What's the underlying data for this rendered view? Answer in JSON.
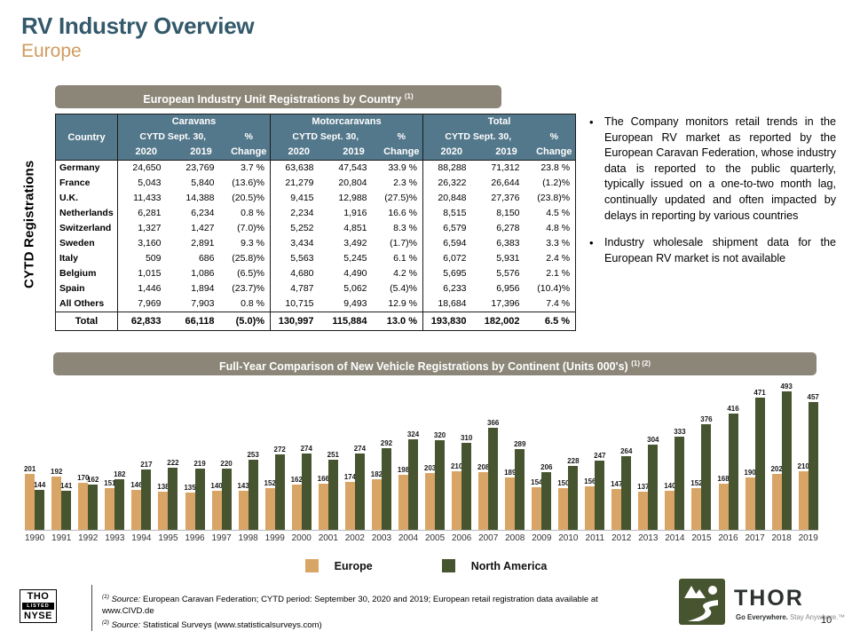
{
  "slide": {
    "title": "RV Industry Overview",
    "subtitle": "Europe",
    "page_number": "10"
  },
  "table_section": {
    "header": "European Industry Unit Registrations by Country",
    "header_superscript": "(1)",
    "vertical_label": "CYTD Registrations",
    "table": {
      "country_header": "Country",
      "groups": [
        {
          "name": "Caravans"
        },
        {
          "name": "Motorcaravans"
        },
        {
          "name": "Total"
        }
      ],
      "period_label": "CYTD Sept. 30,",
      "pct_label": "%",
      "year_cols": [
        "2020",
        "2019"
      ],
      "change_label": "Change",
      "rows": [
        {
          "country": "Germany",
          "values": [
            "24,650",
            "23,769",
            "3.7 %",
            "63,638",
            "47,543",
            "33.9 %",
            "88,288",
            "71,312",
            "23.8 %"
          ]
        },
        {
          "country": "France",
          "values": [
            "5,043",
            "5,840",
            "(13.6)%",
            "21,279",
            "20,804",
            "2.3 %",
            "26,322",
            "26,644",
            "(1.2)%"
          ]
        },
        {
          "country": "U.K.",
          "values": [
            "11,433",
            "14,388",
            "(20.5)%",
            "9,415",
            "12,988",
            "(27.5)%",
            "20,848",
            "27,376",
            "(23.8)%"
          ]
        },
        {
          "country": "Netherlands",
          "values": [
            "6,281",
            "6,234",
            "0.8 %",
            "2,234",
            "1,916",
            "16.6 %",
            "8,515",
            "8,150",
            "4.5 %"
          ]
        },
        {
          "country": "Switzerland",
          "values": [
            "1,327",
            "1,427",
            "(7.0)%",
            "5,252",
            "4,851",
            "8.3 %",
            "6,579",
            "6,278",
            "4.8 %"
          ]
        },
        {
          "country": "Sweden",
          "values": [
            "3,160",
            "2,891",
            "9.3 %",
            "3,434",
            "3,492",
            "(1.7)%",
            "6,594",
            "6,383",
            "3.3 %"
          ]
        },
        {
          "country": "Italy",
          "values": [
            "509",
            "686",
            "(25.8)%",
            "5,563",
            "5,245",
            "6.1 %",
            "6,072",
            "5,931",
            "2.4 %"
          ]
        },
        {
          "country": "Belgium",
          "values": [
            "1,015",
            "1,086",
            "(6.5)%",
            "4,680",
            "4,490",
            "4.2 %",
            "5,695",
            "5,576",
            "2.1 %"
          ]
        },
        {
          "country": "Spain",
          "values": [
            "1,446",
            "1,894",
            "(23.7)%",
            "4,787",
            "5,062",
            "(5.4)%",
            "6,233",
            "6,956",
            "(10.4)%"
          ]
        },
        {
          "country": "All Others",
          "values": [
            "7,969",
            "7,903",
            "0.8 %",
            "10,715",
            "9,493",
            "12.9 %",
            "18,684",
            "17,396",
            "7.4 %"
          ]
        }
      ],
      "total_row": {
        "country": "Total",
        "values": [
          "62,833",
          "66,118",
          "(5.0)%",
          "130,997",
          "115,884",
          "13.0 %",
          "193,830",
          "182,002",
          "6.5 %"
        ]
      }
    }
  },
  "bullets": [
    "The Company monitors retail trends in the European RV market as reported by the European Caravan Federation, whose industry data is reported to the public quarterly, typically issued on a one-to-two month lag, continually updated and often impacted by delays in reporting by various countries",
    "Industry wholesale shipment data for the European RV market is not available"
  ],
  "chart_section": {
    "header": "Full-Year Comparison of New Vehicle Registrations by Continent (Units 000's)",
    "header_superscript": "(1) (2)"
  },
  "chart_data": {
    "type": "bar",
    "title": "Full-Year Comparison of New Vehicle Registrations by Continent (Units 000's)",
    "xlabel": "",
    "ylabel": "",
    "ylim": [
      0,
      500
    ],
    "grid": false,
    "legend_position": "bottom",
    "categories": [
      "1990",
      "1991",
      "1992",
      "1993",
      "1994",
      "1995",
      "1996",
      "1997",
      "1998",
      "1999",
      "2000",
      "2001",
      "2002",
      "2003",
      "2004",
      "2005",
      "2006",
      "2007",
      "2008",
      "2009",
      "2010",
      "2011",
      "2012",
      "2013",
      "2014",
      "2015",
      "2016",
      "2017",
      "2018",
      "2019"
    ],
    "series": [
      {
        "name": "Europe",
        "color": "#D9A566",
        "values": [
          201,
          192,
          170,
          151,
          146,
          138,
          135,
          140,
          143,
          152,
          162,
          166,
          174,
          182,
          198,
          203,
          210,
          208,
          189,
          154,
          150,
          156,
          147,
          137,
          140,
          152,
          168,
          190,
          202,
          210
        ]
      },
      {
        "name": "North America",
        "color": "#475430",
        "values": [
          144,
          141,
          162,
          182,
          217,
          222,
          219,
          220,
          253,
          272,
          274,
          251,
          274,
          292,
          324,
          320,
          310,
          366,
          289,
          206,
          228,
          247,
          264,
          304,
          333,
          376,
          416,
          471,
          493,
          457
        ]
      }
    ]
  },
  "footer": {
    "nyse_badge": {
      "line1": "THO",
      "line2": "LISTED",
      "line3": "NYSE"
    },
    "footnotes": [
      {
        "sup": "(1)",
        "source_label": "Source:",
        "text": " European Caravan Federation; CYTD period: September 30, 2020 and 2019; European retail registration data available at www.CIVD.de"
      },
      {
        "sup": "(2)",
        "source_label": "Source:",
        "text": " Statistical Surveys (www.statisticalsurveys.com)"
      }
    ],
    "logo": {
      "wordmark": "THOR",
      "tagline_bold": "Go Everywhere.",
      "tagline_rest": " Stay Anywhere.™"
    }
  },
  "colors": {
    "title": "#33596B",
    "subtitle": "#D09C5F",
    "section_bar": "#8B8678",
    "table_header": "#54788B",
    "europe_bar": "#D9A566",
    "north_america_bar": "#475430"
  }
}
